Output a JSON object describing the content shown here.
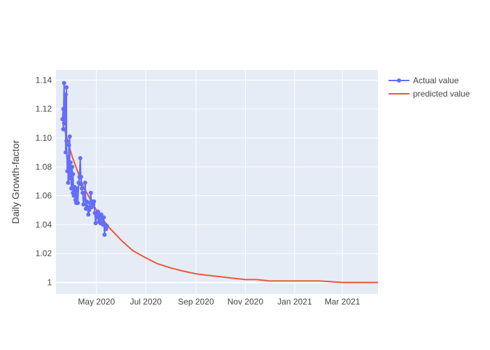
{
  "chart_data": {
    "type": "line",
    "title": "",
    "xlabel": "",
    "ylabel": "Daily Growth-factor",
    "x_range": [
      "2020-03-12",
      "2021-04-14"
    ],
    "ylim": [
      0.992,
      1.147
    ],
    "x_ticks": [
      {
        "date": "2020-05-01",
        "label": "May 2020"
      },
      {
        "date": "2020-07-01",
        "label": "Jul 2020"
      },
      {
        "date": "2020-09-01",
        "label": "Sep 2020"
      },
      {
        "date": "2020-11-01",
        "label": "Nov 2020"
      },
      {
        "date": "2021-01-01",
        "label": "Jan 2021"
      },
      {
        "date": "2021-03-01",
        "label": "Mar 2021"
      }
    ],
    "y_ticks": [
      {
        "value": 1.0,
        "label": "1"
      },
      {
        "value": 1.02,
        "label": "1.02"
      },
      {
        "value": 1.04,
        "label": "1.04"
      },
      {
        "value": 1.06,
        "label": "1.06"
      },
      {
        "value": 1.08,
        "label": "1.08"
      },
      {
        "value": 1.1,
        "label": "1.10"
      },
      {
        "value": 1.12,
        "label": "1.12"
      },
      {
        "value": 1.14,
        "label": "1.14"
      }
    ],
    "grid": true,
    "legend_position": "top-right",
    "series": [
      {
        "name": "Actual value",
        "mode": "lines+markers",
        "color": "#636efa",
        "points": [
          [
            "2020-03-20",
            1.113
          ],
          [
            "2020-03-21",
            1.12
          ],
          [
            "2020-03-21",
            1.106
          ],
          [
            "2020-03-22",
            1.138
          ],
          [
            "2020-03-23",
            1.11
          ],
          [
            "2020-03-24",
            1.13
          ],
          [
            "2020-03-24",
            1.09
          ],
          [
            "2020-03-25",
            1.135
          ],
          [
            "2020-03-25",
            1.098
          ],
          [
            "2020-03-26",
            1.077
          ],
          [
            "2020-03-27",
            1.087
          ],
          [
            "2020-03-27",
            1.069
          ],
          [
            "2020-03-28",
            1.095
          ],
          [
            "2020-03-29",
            1.101
          ],
          [
            "2020-03-29",
            1.072
          ],
          [
            "2020-03-30",
            1.083
          ],
          [
            "2020-03-31",
            1.065
          ],
          [
            "2020-04-01",
            1.08
          ],
          [
            "2020-04-02",
            1.062
          ],
          [
            "2020-04-02",
            1.075
          ],
          [
            "2020-04-03",
            1.06
          ],
          [
            "2020-04-04",
            1.066
          ],
          [
            "2020-04-05",
            1.057
          ],
          [
            "2020-04-06",
            1.064
          ],
          [
            "2020-04-06",
            1.055
          ],
          [
            "2020-04-07",
            1.065
          ],
          [
            "2020-04-08",
            1.055
          ],
          [
            "2020-04-09",
            1.069
          ],
          [
            "2020-04-10",
            1.073
          ],
          [
            "2020-04-11",
            1.086
          ],
          [
            "2020-04-12",
            1.068
          ],
          [
            "2020-04-12",
            1.073
          ],
          [
            "2020-04-13",
            1.065
          ],
          [
            "2020-04-14",
            1.062
          ],
          [
            "2020-04-15",
            1.054
          ],
          [
            "2020-04-16",
            1.058
          ],
          [
            "2020-04-17",
            1.069
          ],
          [
            "2020-04-18",
            1.051
          ],
          [
            "2020-04-19",
            1.056
          ],
          [
            "2020-04-20",
            1.052
          ],
          [
            "2020-04-21",
            1.047
          ],
          [
            "2020-04-22",
            1.05
          ],
          [
            "2020-04-23",
            1.055
          ],
          [
            "2020-04-24",
            1.062
          ],
          [
            "2020-04-25",
            1.052
          ],
          [
            "2020-04-26",
            1.056
          ],
          [
            "2020-04-27",
            1.054
          ],
          [
            "2020-04-28",
            1.056
          ],
          [
            "2020-04-29",
            1.048
          ],
          [
            "2020-04-30",
            1.041
          ],
          [
            "2020-05-01",
            1.048
          ],
          [
            "2020-05-02",
            1.045
          ],
          [
            "2020-05-03",
            1.049
          ],
          [
            "2020-05-04",
            1.042
          ],
          [
            "2020-05-05",
            1.047
          ],
          [
            "2020-05-06",
            1.041
          ],
          [
            "2020-05-07",
            1.047
          ],
          [
            "2020-05-08",
            1.044
          ],
          [
            "2020-05-09",
            1.04
          ],
          [
            "2020-05-10",
            1.045
          ],
          [
            "2020-05-11",
            1.033
          ],
          [
            "2020-05-12",
            1.04
          ],
          [
            "2020-05-13",
            1.037
          ],
          [
            "2020-05-14",
            1.039
          ]
        ]
      },
      {
        "name": "predicted value",
        "mode": "lines",
        "color": "#ef553b",
        "points": [
          [
            "2020-03-20",
            1.111
          ],
          [
            "2020-04-01",
            1.087
          ],
          [
            "2020-04-15",
            1.066
          ],
          [
            "2020-05-01",
            1.05
          ],
          [
            "2020-05-15",
            1.039
          ],
          [
            "2020-06-01",
            1.029
          ],
          [
            "2020-06-15",
            1.022
          ],
          [
            "2020-07-01",
            1.017
          ],
          [
            "2020-07-15",
            1.013
          ],
          [
            "2020-08-01",
            1.01
          ],
          [
            "2020-08-15",
            1.008
          ],
          [
            "2020-09-01",
            1.006
          ],
          [
            "2020-09-15",
            1.005
          ],
          [
            "2020-10-01",
            1.004
          ],
          [
            "2020-10-15",
            1.003
          ],
          [
            "2020-11-01",
            1.002
          ],
          [
            "2020-11-15",
            1.002
          ],
          [
            "2020-12-01",
            1.001
          ],
          [
            "2021-01-01",
            1.001
          ],
          [
            "2021-02-01",
            1.001
          ],
          [
            "2021-03-01",
            1.0
          ],
          [
            "2021-04-14",
            1.0
          ]
        ]
      }
    ]
  }
}
